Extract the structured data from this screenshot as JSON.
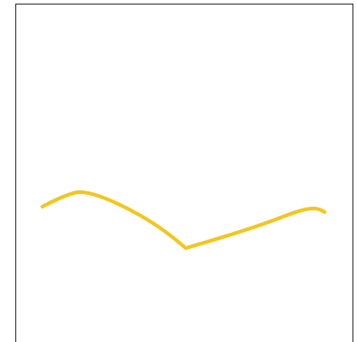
{
  "canvas": {
    "background_color": "#ffffff",
    "frame_color": "#2b2b2b"
  },
  "stroke": {
    "color": "#f2c61f",
    "style": "freehand-curve",
    "shape": "rises gently, descends to a low point, then rises again to the right"
  }
}
